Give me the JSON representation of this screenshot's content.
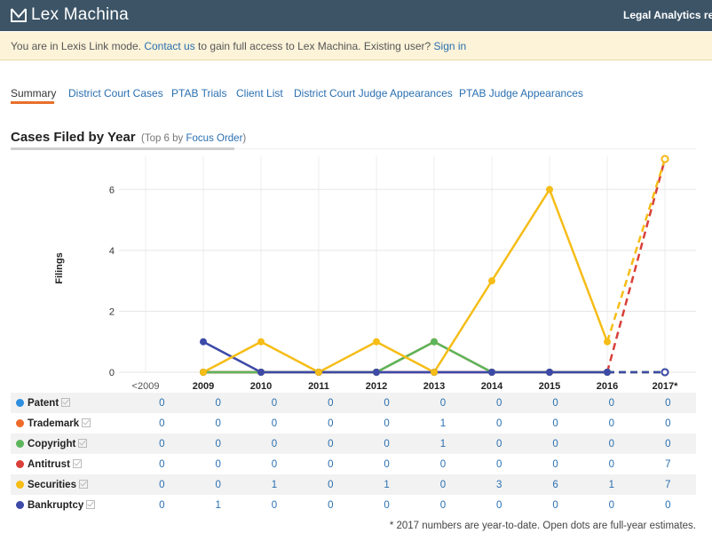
{
  "header": {
    "logo_text": "Lex Machina",
    "tagline": "Legal Analytics rev"
  },
  "banner": {
    "prefix": "You are in Lexis Link mode.",
    "contact_link": "Contact us",
    "middle": "to gain full access to Lex Machina. Existing user?",
    "signin_link": "Sign in"
  },
  "tabs": [
    {
      "label": "Summary",
      "active": true
    },
    {
      "label": "District Court Cases",
      "active": false
    },
    {
      "label": "PTAB Trials",
      "active": false
    },
    {
      "label": "Client List",
      "active": false
    },
    {
      "label": "District Court Judge Appearances",
      "active": false
    },
    {
      "label": "PTAB Judge Appearances",
      "active": false
    }
  ],
  "section": {
    "title": "Cases Filed by Year",
    "subtitle_prefix": "(Top 6 by",
    "subtitle_link": "Focus Order",
    "subtitle_suffix": ")"
  },
  "chart_data": {
    "type": "line",
    "ylabel": "Filings",
    "xlabel": "",
    "categories": [
      "<2009",
      "2009",
      "2010",
      "2011",
      "2012",
      "2013",
      "2014",
      "2015",
      "2016",
      "2017*"
    ],
    "yticks": [
      0,
      2,
      4,
      6
    ],
    "ylim": [
      0,
      7
    ],
    "grid": true,
    "series": [
      {
        "name": "Patent",
        "color": "#2e8fe0",
        "values": [
          0,
          0,
          0,
          0,
          0,
          0,
          0,
          0,
          0,
          0
        ]
      },
      {
        "name": "Trademark",
        "color": "#ee6b2a",
        "values": [
          0,
          0,
          0,
          0,
          0,
          1,
          0,
          0,
          0,
          0
        ]
      },
      {
        "name": "Copyright",
        "color": "#5cb55a",
        "values": [
          0,
          0,
          0,
          0,
          0,
          1,
          0,
          0,
          0,
          0
        ]
      },
      {
        "name": "Antitrust",
        "color": "#d9403a",
        "values": [
          0,
          0,
          0,
          0,
          0,
          0,
          0,
          0,
          0,
          7
        ]
      },
      {
        "name": "Securities",
        "color": "#f5bd17",
        "values": [
          0,
          0,
          1,
          0,
          1,
          0,
          3,
          6,
          1,
          7
        ]
      },
      {
        "name": "Bankruptcy",
        "color": "#3d4aa8",
        "values": [
          0,
          1,
          0,
          0,
          0,
          0,
          0,
          0,
          0,
          0
        ]
      }
    ],
    "estimate_last_point": true
  },
  "footnote": "* 2017 numbers are year-to-date. Open dots are full-year estimates."
}
